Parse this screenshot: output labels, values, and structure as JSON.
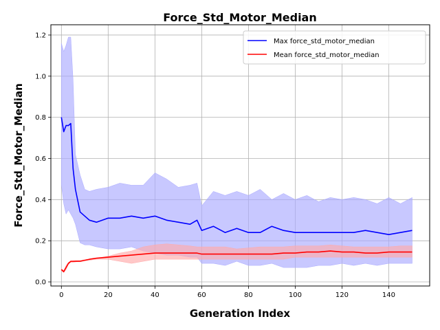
{
  "chart_data": {
    "type": "line",
    "title": "Force_Std_Motor_Median",
    "xlabel": "Generation Index",
    "ylabel": "Force_Std_Motor_Median",
    "xlim": [
      -4.5,
      157.5
    ],
    "ylim": [
      -0.02,
      1.25
    ],
    "xticks": [
      0,
      20,
      40,
      60,
      80,
      100,
      120,
      140
    ],
    "yticks": [
      0.0,
      0.2,
      0.4,
      0.6,
      0.8,
      1.0,
      1.2
    ],
    "grid": true,
    "legend_position": "top-right",
    "x": [
      0,
      1,
      2,
      3,
      4,
      5,
      6,
      8,
      10,
      12,
      15,
      20,
      25,
      30,
      35,
      40,
      45,
      50,
      55,
      58,
      60,
      65,
      70,
      75,
      80,
      85,
      90,
      95,
      100,
      105,
      110,
      115,
      120,
      125,
      130,
      135,
      140,
      145,
      150
    ],
    "series": [
      {
        "name": "Max force_std_motor_median",
        "color": "#0000ff",
        "fill_color": "#aaaaff",
        "values": [
          0.8,
          0.73,
          0.76,
          0.76,
          0.77,
          0.55,
          0.45,
          0.34,
          0.32,
          0.3,
          0.29,
          0.31,
          0.31,
          0.32,
          0.31,
          0.32,
          0.3,
          0.29,
          0.28,
          0.3,
          0.25,
          0.27,
          0.24,
          0.26,
          0.24,
          0.24,
          0.27,
          0.25,
          0.24,
          0.24,
          0.24,
          0.24,
          0.24,
          0.24,
          0.25,
          0.24,
          0.23,
          0.24,
          0.25
        ],
        "upper": [
          1.16,
          1.12,
          1.15,
          1.19,
          1.19,
          0.98,
          0.62,
          0.52,
          0.45,
          0.44,
          0.45,
          0.46,
          0.48,
          0.47,
          0.47,
          0.53,
          0.5,
          0.46,
          0.47,
          0.48,
          0.37,
          0.44,
          0.42,
          0.44,
          0.42,
          0.45,
          0.4,
          0.43,
          0.4,
          0.42,
          0.39,
          0.41,
          0.4,
          0.41,
          0.4,
          0.38,
          0.41,
          0.38,
          0.41
        ],
        "lower": [
          0.47,
          0.38,
          0.33,
          0.35,
          0.33,
          0.31,
          0.28,
          0.19,
          0.18,
          0.18,
          0.17,
          0.16,
          0.16,
          0.17,
          0.15,
          0.14,
          0.13,
          0.13,
          0.12,
          0.12,
          0.09,
          0.09,
          0.08,
          0.1,
          0.08,
          0.08,
          0.09,
          0.07,
          0.07,
          0.07,
          0.08,
          0.08,
          0.09,
          0.08,
          0.09,
          0.08,
          0.09,
          0.09,
          0.09
        ]
      },
      {
        "name": "Mean force_std_motor_median",
        "color": "#ff0000",
        "fill_color": "#ffaaaa",
        "values": [
          0.06,
          0.05,
          0.07,
          0.09,
          0.1,
          0.1,
          0.1,
          0.1,
          0.105,
          0.11,
          0.115,
          0.12,
          0.125,
          0.13,
          0.135,
          0.14,
          0.14,
          0.14,
          0.14,
          0.14,
          0.135,
          0.135,
          0.135,
          0.135,
          0.135,
          0.135,
          0.135,
          0.14,
          0.14,
          0.145,
          0.145,
          0.15,
          0.145,
          0.145,
          0.14,
          0.14,
          0.145,
          0.145,
          0.145
        ],
        "upper": [
          0.065,
          0.055,
          0.08,
          0.095,
          0.1,
          0.102,
          0.104,
          0.105,
          0.108,
          0.11,
          0.115,
          0.125,
          0.14,
          0.15,
          0.17,
          0.18,
          0.185,
          0.18,
          0.175,
          0.17,
          0.17,
          0.17,
          0.17,
          0.16,
          0.165,
          0.17,
          0.17,
          0.17,
          0.175,
          0.175,
          0.175,
          0.18,
          0.175,
          0.17,
          0.17,
          0.17,
          0.17,
          0.175,
          0.175
        ],
        "lower": [
          0.055,
          0.045,
          0.06,
          0.085,
          0.095,
          0.095,
          0.097,
          0.1,
          0.103,
          0.105,
          0.11,
          0.11,
          0.1,
          0.09,
          0.1,
          0.11,
          0.11,
          0.11,
          0.11,
          0.11,
          0.11,
          0.11,
          0.11,
          0.11,
          0.11,
          0.11,
          0.11,
          0.11,
          0.12,
          0.12,
          0.12,
          0.12,
          0.12,
          0.12,
          0.12,
          0.12,
          0.12,
          0.12,
          0.12
        ]
      }
    ]
  }
}
